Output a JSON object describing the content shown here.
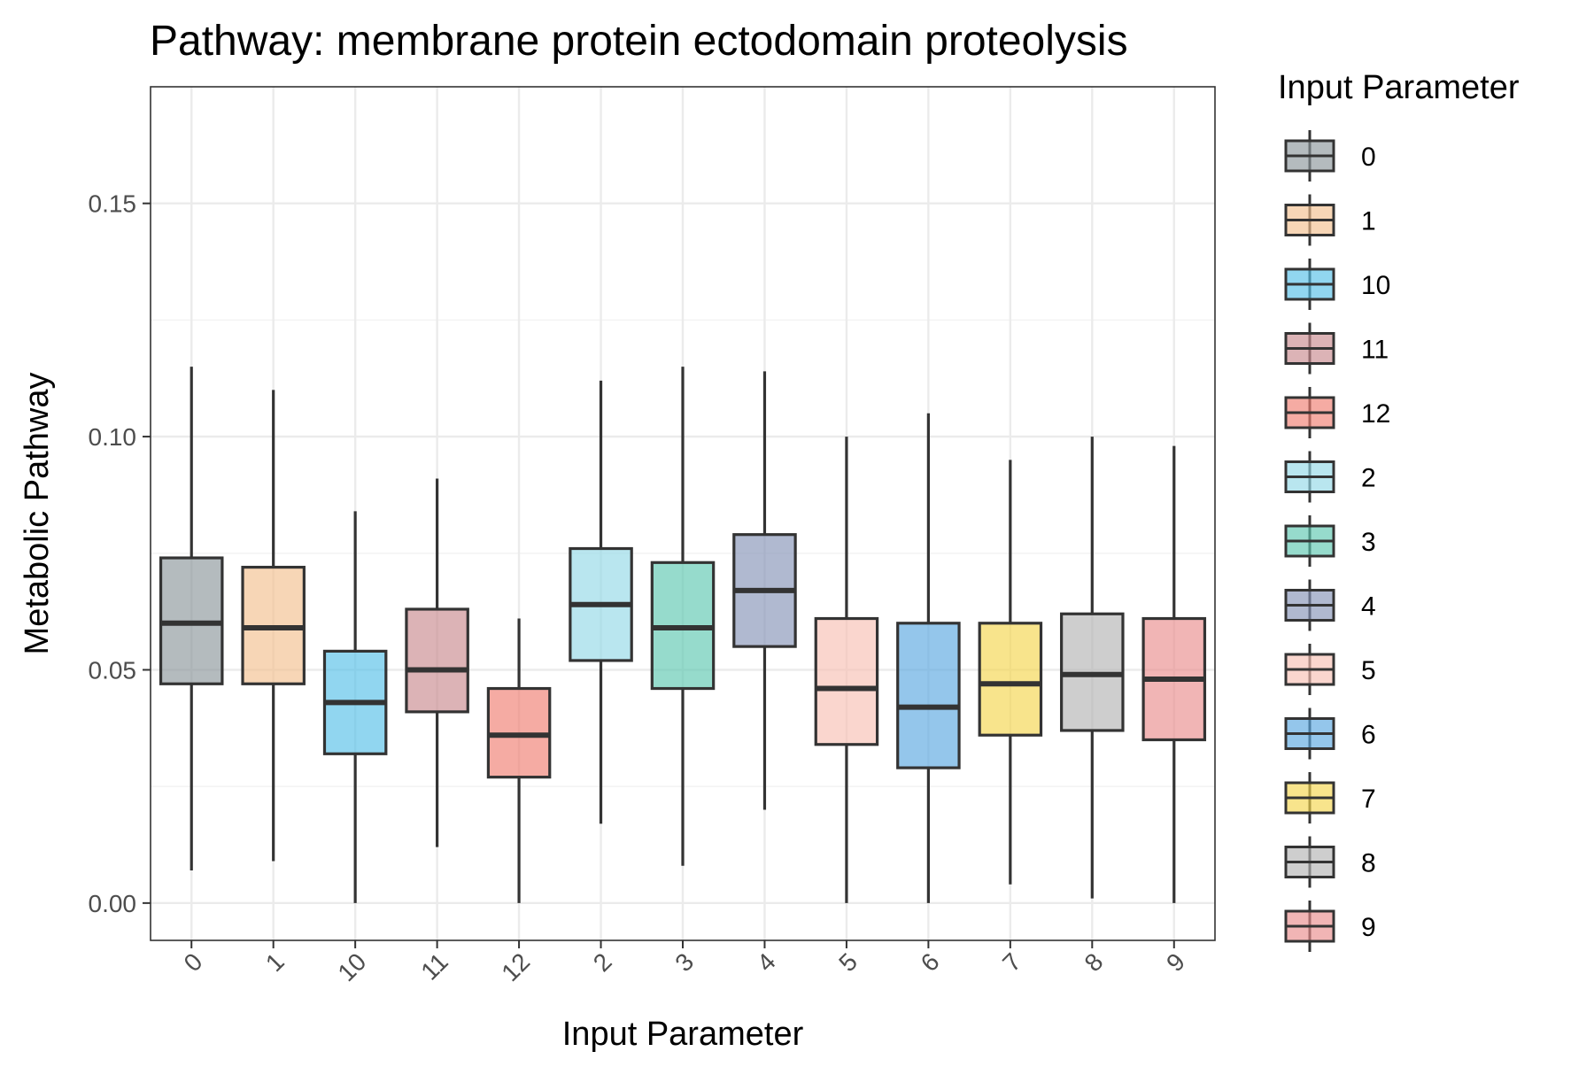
{
  "chart_data": {
    "type": "box",
    "title": "Pathway: membrane protein ectodomain proteolysis",
    "xlabel": "Input Parameter",
    "ylabel": "Metabolic Pathway",
    "ylim": [
      -0.008,
      0.175
    ],
    "y_ticks": [
      0.0,
      0.05,
      0.1,
      0.15
    ],
    "y_tick_labels": [
      "0.00",
      "0.05",
      "0.10",
      "0.15"
    ],
    "grid": true,
    "legend": {
      "title": "Input Parameter",
      "position": "right"
    },
    "categories": [
      "0",
      "1",
      "10",
      "11",
      "12",
      "2",
      "3",
      "4",
      "5",
      "6",
      "7",
      "8",
      "9"
    ],
    "boxes": [
      {
        "label": "0",
        "whisker_low": 0.007,
        "q1": 0.047,
        "median": 0.06,
        "q3": 0.074,
        "whisker_high": 0.115,
        "color": "#8c979b"
      },
      {
        "label": "1",
        "whisker_low": 0.009,
        "q1": 0.047,
        "median": 0.059,
        "q3": 0.072,
        "whisker_high": 0.11,
        "color": "#f2c08f"
      },
      {
        "label": "10",
        "whisker_low": 0.0,
        "q1": 0.032,
        "median": 0.043,
        "q3": 0.054,
        "whisker_high": 0.084,
        "color": "#56c0e8"
      },
      {
        "label": "11",
        "whisker_low": 0.012,
        "q1": 0.041,
        "median": 0.05,
        "q3": 0.063,
        "whisker_high": 0.091,
        "color": "#c98a8f"
      },
      {
        "label": "12",
        "whisker_low": 0.0,
        "q1": 0.027,
        "median": 0.036,
        "q3": 0.046,
        "whisker_high": 0.061,
        "color": "#f07e72"
      },
      {
        "label": "2",
        "whisker_low": 0.017,
        "q1": 0.052,
        "median": 0.064,
        "q3": 0.076,
        "whisker_high": 0.112,
        "color": "#93d8e6"
      },
      {
        "label": "3",
        "whisker_low": 0.008,
        "q1": 0.046,
        "median": 0.059,
        "q3": 0.073,
        "whisker_high": 0.115,
        "color": "#5ec7b0"
      },
      {
        "label": "4",
        "whisker_low": 0.02,
        "q1": 0.055,
        "median": 0.067,
        "q3": 0.079,
        "whisker_high": 0.114,
        "color": "#8594b7"
      },
      {
        "label": "5",
        "whisker_low": 0.0,
        "q1": 0.034,
        "median": 0.046,
        "q3": 0.061,
        "whisker_high": 0.1,
        "color": "#f7c0b3"
      },
      {
        "label": "6",
        "whisker_low": 0.0,
        "q1": 0.029,
        "median": 0.042,
        "q3": 0.06,
        "whisker_high": 0.105,
        "color": "#5aa7e0"
      },
      {
        "label": "7",
        "whisker_low": 0.004,
        "q1": 0.036,
        "median": 0.047,
        "q3": 0.06,
        "whisker_high": 0.095,
        "color": "#f4d54f"
      },
      {
        "label": "8",
        "whisker_low": 0.001,
        "q1": 0.037,
        "median": 0.049,
        "q3": 0.062,
        "whisker_high": 0.1,
        "color": "#b3b3b3"
      },
      {
        "label": "9",
        "whisker_low": 0.0,
        "q1": 0.035,
        "median": 0.048,
        "q3": 0.061,
        "whisker_high": 0.098,
        "color": "#e98d8e"
      }
    ],
    "legend_order": [
      "0",
      "1",
      "10",
      "11",
      "12",
      "2",
      "3",
      "4",
      "5",
      "6",
      "7",
      "8",
      "9"
    ],
    "box_alpha": 0.65,
    "outline_color": "#333333"
  }
}
